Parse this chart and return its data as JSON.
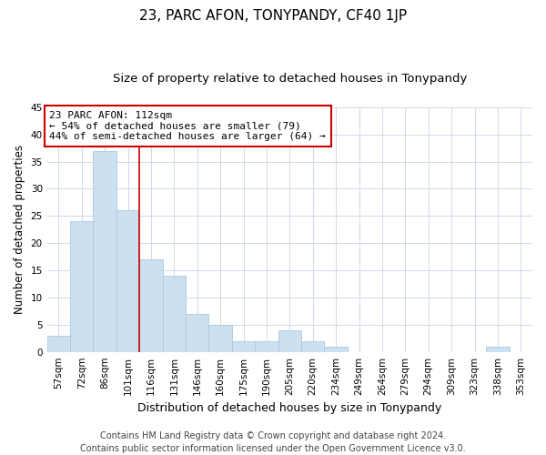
{
  "title": "23, PARC AFON, TONYPANDY, CF40 1JP",
  "subtitle": "Size of property relative to detached houses in Tonypandy",
  "xlabel": "Distribution of detached houses by size in Tonypandy",
  "ylabel": "Number of detached properties",
  "bar_labels": [
    "57sqm",
    "72sqm",
    "86sqm",
    "101sqm",
    "116sqm",
    "131sqm",
    "146sqm",
    "160sqm",
    "175sqm",
    "190sqm",
    "205sqm",
    "220sqm",
    "234sqm",
    "249sqm",
    "264sqm",
    "279sqm",
    "294sqm",
    "309sqm",
    "323sqm",
    "338sqm",
    "353sqm"
  ],
  "bar_values": [
    3,
    24,
    37,
    26,
    17,
    14,
    7,
    5,
    2,
    2,
    4,
    2,
    1,
    0,
    0,
    0,
    0,
    0,
    0,
    1,
    0
  ],
  "bar_color": "#cce0f0",
  "bar_edge_color": "#aac8e0",
  "highlight_line_color": "#cc0000",
  "ylim": [
    0,
    45
  ],
  "yticks": [
    0,
    5,
    10,
    15,
    20,
    25,
    30,
    35,
    40,
    45
  ],
  "annotation_line1": "23 PARC AFON: 112sqm",
  "annotation_line2": "← 54% of detached houses are smaller (79)",
  "annotation_line3": "44% of semi-detached houses are larger (64) →",
  "annotation_box_color": "#ffffff",
  "annotation_box_edge_color": "#cc0000",
  "footer_line1": "Contains HM Land Registry data © Crown copyright and database right 2024.",
  "footer_line2": "Contains public sector information licensed under the Open Government Licence v3.0.",
  "bg_color": "#ffffff",
  "grid_color": "#d0d8e8",
  "title_fontsize": 11,
  "subtitle_fontsize": 9.5,
  "xlabel_fontsize": 9,
  "ylabel_fontsize": 8.5,
  "tick_fontsize": 7.5,
  "annotation_fontsize": 8,
  "footer_fontsize": 7
}
